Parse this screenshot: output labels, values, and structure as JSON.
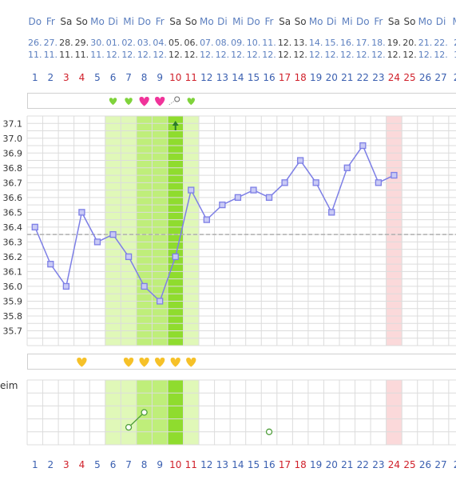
{
  "colors": {
    "weekday": "#5c7fbf",
    "weekend": "#3d3d3d",
    "day_normal": "#3a5fb0",
    "day_red": "#d0202a",
    "grid": "#dcdcdc",
    "fertile_light": "#e0f8b8",
    "fertile_mid": "#bfee7a",
    "ovulation": "#8fdc2e",
    "period_day": "#fbd9da",
    "line": "#7d7fe6",
    "coverline": "#b0b0b0",
    "heart_green": "#7fd33b",
    "heart_pink": "#f0339a",
    "heart_yellow": "#f6c128",
    "test_marker": "#4f9e3b",
    "arrow": "#2b7a2b"
  },
  "weekdays": [
    "Do",
    "Fr",
    "Sa",
    "So",
    "Mo",
    "Di",
    "Mi",
    "Do",
    "Fr",
    "Sa",
    "So",
    "Mo",
    "Di",
    "Mi",
    "Do",
    "Fr",
    "Sa",
    "So",
    "Mo",
    "Di",
    "Mi",
    "Do",
    "Fr",
    "Sa",
    "So",
    "Mo",
    "Di",
    "M"
  ],
  "dates_day": [
    "26.",
    "27.",
    "28.",
    "29.",
    "30.",
    "01.",
    "02.",
    "03.",
    "04.",
    "05.",
    "06.",
    "07.",
    "08.",
    "09.",
    "10.",
    "11.",
    "12.",
    "13.",
    "14.",
    "15.",
    "16.",
    "17.",
    "18.",
    "19.",
    "20.",
    "21.",
    "22.",
    "2"
  ],
  "dates_month": [
    "11.",
    "11.",
    "11.",
    "11.",
    "11.",
    "12.",
    "12.",
    "12.",
    "12.",
    "12.",
    "12.",
    "12.",
    "12.",
    "12.",
    "12.",
    "12.",
    "12.",
    "12.",
    "12.",
    "12.",
    "12.",
    "12.",
    "12.",
    "12.",
    "12.",
    "12.",
    "12.",
    "1"
  ],
  "cycle_days": [
    "1",
    "2",
    "3",
    "4",
    "5",
    "6",
    "7",
    "8",
    "9",
    "10",
    "11",
    "12",
    "13",
    "14",
    "15",
    "16",
    "17",
    "18",
    "19",
    "20",
    "21",
    "22",
    "23",
    "24",
    "25",
    "26",
    "27",
    "2"
  ],
  "red_cycle_days": [
    3,
    4,
    10,
    11,
    17,
    18,
    24,
    25
  ],
  "side_label": "eim",
  "chart_data": {
    "type": "line",
    "y_ticks": [
      "37.1",
      "37.0",
      "36.9",
      "36.8",
      "36.7",
      "36.6",
      "36.5",
      "36.4",
      "36.3",
      "36.2",
      "36.1",
      "36.0",
      "35.9",
      "35.8",
      "35.7"
    ],
    "ylim": [
      35.6,
      37.15
    ],
    "coverline": 36.35,
    "fertile_window_days": [
      6,
      11
    ],
    "fertile_peak_days": [
      8,
      9
    ],
    "ovulation_day": 10,
    "arrow_day": 10,
    "period_days": [
      24
    ],
    "series": [
      {
        "points": [
          {
            "day": 1,
            "temp": 36.4
          },
          {
            "day": 2,
            "temp": 36.15
          },
          {
            "day": 3,
            "temp": 36.0
          },
          {
            "day": 4,
            "temp": 36.5
          },
          {
            "day": 5,
            "temp": 36.3
          },
          {
            "day": 6,
            "temp": 36.35
          },
          {
            "day": 7,
            "temp": 36.2
          },
          {
            "day": 8,
            "temp": 36.0
          },
          {
            "day": 9,
            "temp": 35.9
          },
          {
            "day": 10,
            "temp": 36.2
          },
          {
            "day": 11,
            "temp": 36.65
          },
          {
            "day": 12,
            "temp": 36.45
          },
          {
            "day": 13,
            "temp": 36.55
          },
          {
            "day": 14,
            "temp": 36.6
          },
          {
            "day": 15,
            "temp": 36.65
          },
          {
            "day": 16,
            "temp": 36.6
          },
          {
            "day": 17,
            "temp": 36.7
          },
          {
            "day": 18,
            "temp": 36.85
          },
          {
            "day": 19,
            "temp": 36.7
          },
          {
            "day": 20,
            "temp": 36.5
          },
          {
            "day": 21,
            "temp": 36.8
          },
          {
            "day": 22,
            "temp": 36.95
          },
          {
            "day": 23,
            "temp": 36.7
          },
          {
            "day": 24,
            "temp": 36.75
          }
        ]
      }
    ],
    "top_hearts": [
      {
        "day": 6,
        "kind": "green"
      },
      {
        "day": 7,
        "kind": "green"
      },
      {
        "day": 8,
        "kind": "pink"
      },
      {
        "day": 9,
        "kind": "pink"
      },
      {
        "day": 11,
        "kind": "green"
      }
    ],
    "top_dots": [
      {
        "day": 10
      }
    ],
    "bottom_hearts": [
      4,
      7,
      8,
      9,
      10,
      11
    ],
    "lower_markers": [
      {
        "day": 7,
        "level": 0.27
      },
      {
        "day": 8,
        "level": 0.5
      },
      {
        "day": 16,
        "level": 0.2
      }
    ],
    "lower_links": [
      [
        0,
        1
      ]
    ]
  }
}
